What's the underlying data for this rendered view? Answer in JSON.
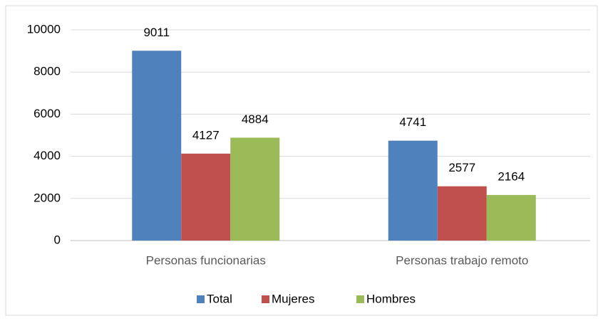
{
  "chart_data": {
    "type": "bar",
    "categories": [
      "Personas funcionarias",
      "Personas trabajo remoto"
    ],
    "series": [
      {
        "name": "Total",
        "color": "#4f81bd",
        "values": [
          9011,
          4741
        ]
      },
      {
        "name": "Mujeres",
        "color": "#c0504d",
        "values": [
          4127,
          2577
        ]
      },
      {
        "name": "Hombres",
        "color": "#9bbb59",
        "values": [
          4884,
          2164
        ]
      }
    ],
    "ylim": [
      0,
      10000
    ],
    "yticks": [
      0,
      2000,
      4000,
      6000,
      8000,
      10000
    ],
    "grid": true,
    "legend": "bottom"
  }
}
